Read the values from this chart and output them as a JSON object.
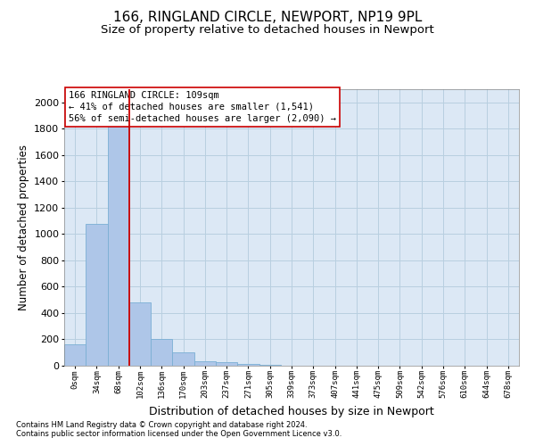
{
  "title1": "166, RINGLAND CIRCLE, NEWPORT, NP19 9PL",
  "title2": "Size of property relative to detached houses in Newport",
  "xlabel": "Distribution of detached houses by size in Newport",
  "ylabel": "Number of detached properties",
  "footnote1": "Contains HM Land Registry data © Crown copyright and database right 2024.",
  "footnote2": "Contains public sector information licensed under the Open Government Licence v3.0.",
  "annotation_line1": "166 RINGLAND CIRCLE: 109sqm",
  "annotation_line2": "← 41% of detached houses are smaller (1,541)",
  "annotation_line3": "56% of semi-detached houses are larger (2,090) →",
  "bar_labels": [
    "0sqm",
    "34sqm",
    "68sqm",
    "102sqm",
    "136sqm",
    "170sqm",
    "203sqm",
    "237sqm",
    "271sqm",
    "305sqm",
    "339sqm",
    "373sqm",
    "407sqm",
    "441sqm",
    "475sqm",
    "509sqm",
    "542sqm",
    "576sqm",
    "610sqm",
    "644sqm",
    "678sqm"
  ],
  "bar_values": [
    160,
    1080,
    1900,
    480,
    200,
    100,
    35,
    25,
    15,
    5,
    2,
    0,
    0,
    0,
    0,
    0,
    0,
    0,
    0,
    0,
    0
  ],
  "bar_color": "#aec6e8",
  "bar_edge_color": "#7aafd4",
  "vline_color": "#cc0000",
  "vline_x_index": 2.5,
  "ylim": [
    0,
    2100
  ],
  "yticks": [
    0,
    200,
    400,
    600,
    800,
    1000,
    1200,
    1400,
    1600,
    1800,
    2000
  ],
  "annotation_box_color": "#cc0000",
  "ax_facecolor": "#dce8f5",
  "background_color": "#ffffff",
  "grid_color": "#b8cfe0",
  "title_fontsize": 11,
  "subtitle_fontsize": 9.5,
  "ylabel_fontsize": 8.5,
  "xlabel_fontsize": 9,
  "xtick_fontsize": 6.5,
  "ytick_fontsize": 8,
  "annot_fontsize": 7.5,
  "footnote_fontsize": 6
}
